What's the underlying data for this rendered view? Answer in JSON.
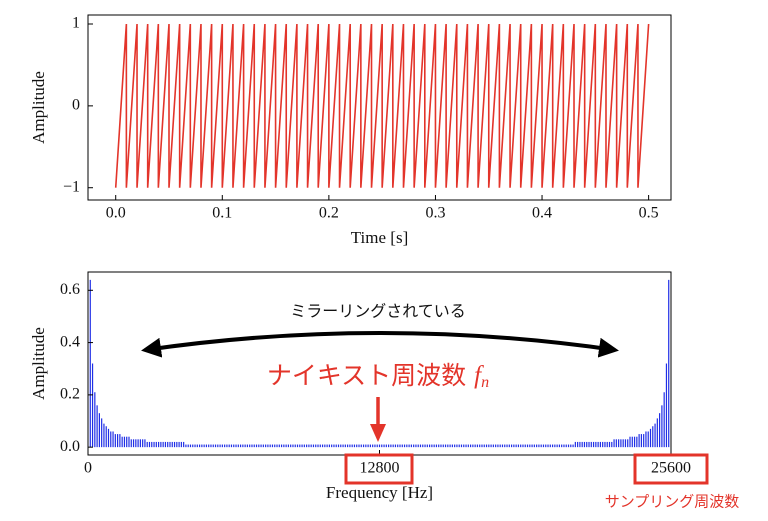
{
  "chart_data": [
    {
      "type": "line",
      "xlabel": "Time [s]",
      "ylabel": "Amplitude",
      "xlim": [
        -0.026,
        0.521
      ],
      "ylim": [
        -1.15,
        1.11
      ],
      "xticks": [
        {
          "value": 0,
          "label": "0.0"
        },
        0.1,
        0.2,
        0.3,
        0.4,
        0.5
      ],
      "yticks": [
        {
          "value": -1,
          "label": "−1"
        },
        0,
        1
      ],
      "color": "#e3342a",
      "x": [
        0,
        0.01,
        0.01,
        0.02,
        0.02,
        0.03,
        0.03,
        0.04,
        0.04,
        0.05,
        0.05,
        0.06,
        0.06,
        0.07,
        0.07,
        0.08,
        0.08,
        0.09,
        0.09,
        0.1,
        0.1,
        0.11,
        0.11,
        0.12,
        0.12,
        0.13,
        0.13,
        0.14,
        0.14,
        0.15,
        0.15,
        0.16,
        0.16,
        0.17,
        0.17,
        0.18,
        0.18,
        0.19,
        0.19,
        0.2,
        0.2,
        0.21,
        0.21,
        0.22,
        0.22,
        0.23,
        0.23,
        0.24,
        0.24,
        0.25,
        0.25,
        0.26,
        0.26,
        0.27,
        0.27,
        0.28,
        0.28,
        0.29,
        0.29,
        0.3,
        0.3,
        0.31,
        0.31,
        0.32,
        0.32,
        0.33,
        0.33,
        0.34,
        0.34,
        0.35,
        0.35,
        0.36,
        0.36,
        0.37,
        0.37,
        0.38,
        0.38,
        0.39,
        0.39,
        0.4,
        0.4,
        0.41,
        0.41,
        0.42,
        0.42,
        0.43,
        0.43,
        0.44,
        0.44,
        0.45,
        0.45,
        0.46,
        0.46,
        0.47,
        0.47,
        0.48,
        0.48,
        0.49,
        0.49,
        0.5
      ],
      "values": [
        -1,
        1,
        -1,
        1,
        -1,
        1,
        -1,
        1,
        -1,
        1,
        -1,
        1,
        -1,
        1,
        -1,
        1,
        -1,
        1,
        -1,
        1,
        -1,
        1,
        -1,
        1,
        -1,
        1,
        -1,
        1,
        -1,
        1,
        -1,
        1,
        -1,
        1,
        -1,
        1,
        -1,
        1,
        -1,
        1,
        -1,
        1,
        -1,
        1,
        -1,
        1,
        -1,
        1,
        -1,
        1,
        -1,
        1,
        -1,
        1,
        -1,
        1,
        -1,
        1,
        -1,
        1,
        -1,
        1,
        -1,
        1,
        -1,
        1,
        -1,
        1,
        -1,
        1,
        -1,
        1,
        -1,
        1,
        -1,
        1,
        -1,
        1,
        -1,
        1,
        -1,
        1,
        -1,
        1,
        -1,
        1,
        -1,
        1,
        -1,
        1,
        -1,
        1,
        -1,
        1,
        -1,
        1,
        -1,
        1,
        -1,
        1
      ]
    },
    {
      "type": "stem",
      "xlabel": "Frequency [Hz]",
      "ylabel": "Amplitude",
      "xlim": [
        0,
        25600
      ],
      "ylim": [
        -0.03,
        0.67
      ],
      "xticks": [
        0,
        12800,
        25600
      ],
      "yticks": [
        {
          "value": 0,
          "label": "0.0"
        },
        0.2,
        0.4,
        0.6
      ],
      "color": "#1f2ee6",
      "annotations": {
        "mirroring": "ミラーリングされている",
        "nyquist": "ナイキスト周波数",
        "nyquist_symbol": "f",
        "nyquist_subscript": "n",
        "sampling": "サンプリング周波数"
      },
      "x": [
        100,
        200,
        300,
        400,
        500,
        600,
        700,
        800,
        900,
        1000,
        1100,
        1200,
        1300,
        1400,
        1500,
        1600,
        1700,
        1800,
        1900,
        2000,
        2100,
        2200,
        2300,
        2400,
        2500,
        2600,
        2700,
        2800,
        2900,
        3000,
        3100,
        3200,
        3300,
        3400,
        3500,
        3600,
        3700,
        3800,
        3900,
        4000,
        4100,
        4200,
        4300,
        4400,
        4500,
        4600,
        4700,
        4800,
        4900,
        5000,
        5100,
        5200,
        5300,
        5400,
        5500,
        5600,
        5700,
        5800,
        5900,
        6000,
        6100,
        6200,
        6300,
        6400,
        6500,
        6600,
        6700,
        6800,
        6900,
        7000,
        7100,
        7200,
        7300,
        7400,
        7500,
        7600,
        7700,
        7800,
        7900,
        8000,
        8100,
        8200,
        8300,
        8400,
        8500,
        8600,
        8700,
        8800,
        8900,
        9000,
        9100,
        9200,
        9300,
        9400,
        9500,
        9600,
        9700,
        9800,
        9900,
        10000,
        10100,
        10200,
        10300,
        10400,
        10500,
        10600,
        10700,
        10800,
        10900,
        11000,
        11100,
        11200,
        11300,
        11400,
        11500,
        11600,
        11700,
        11800,
        11900,
        12000,
        12100,
        12200,
        12300,
        12400,
        12500,
        12600,
        12700,
        12800,
        12900,
        13000,
        13100,
        13200,
        13300,
        13400,
        13500,
        13600,
        13700,
        13800,
        13900,
        14000,
        14100,
        14200,
        14300,
        14400,
        14500,
        14600,
        14700,
        14800,
        14900,
        15000,
        15100,
        15200,
        15300,
        15400,
        15500,
        15600,
        15700,
        15800,
        15900,
        16000,
        16100,
        16200,
        16300,
        16400,
        16500,
        16600,
        16700,
        16800,
        16900,
        17000,
        17100,
        17200,
        17300,
        17400,
        17500,
        17600,
        17700,
        17800,
        17900,
        18000,
        18100,
        18200,
        18300,
        18400,
        18500,
        18600,
        18700,
        18800,
        18900,
        19000,
        19100,
        19200,
        19300,
        19400,
        19500,
        19600,
        19700,
        19800,
        19900,
        20000,
        20100,
        20200,
        20300,
        20400,
        20500,
        20600,
        20700,
        20800,
        20900,
        21000,
        21100,
        21200,
        21300,
        21400,
        21500,
        21600,
        21700,
        21800,
        21900,
        22000,
        22100,
        22200,
        22300,
        22400,
        22500,
        22600,
        22700,
        22800,
        22900,
        23000,
        23100,
        23200,
        23300,
        23400,
        23500,
        23600,
        23700,
        23800,
        23900,
        24000,
        24100,
        24200,
        24300,
        24400,
        24500,
        24600,
        24700,
        24800,
        24900,
        25000,
        25100,
        25200,
        25300,
        25400,
        25500
      ],
      "values": [
        0.64,
        0.32,
        0.21,
        0.16,
        0.13,
        0.11,
        0.09,
        0.08,
        0.07,
        0.06,
        0.06,
        0.05,
        0.05,
        0.05,
        0.04,
        0.04,
        0.04,
        0.04,
        0.03,
        0.03,
        0.03,
        0.03,
        0.03,
        0.03,
        0.03,
        0.02,
        0.02,
        0.02,
        0.02,
        0.02,
        0.02,
        0.02,
        0.02,
        0.02,
        0.02,
        0.02,
        0.02,
        0.02,
        0.02,
        0.02,
        0.02,
        0.02,
        0.01,
        0.01,
        0.01,
        0.01,
        0.01,
        0.01,
        0.01,
        0.01,
        0.01,
        0.01,
        0.01,
        0.01,
        0.01,
        0.01,
        0.01,
        0.01,
        0.01,
        0.01,
        0.01,
        0.01,
        0.01,
        0.01,
        0.01,
        0.01,
        0.01,
        0.01,
        0.01,
        0.01,
        0.01,
        0.01,
        0.01,
        0.01,
        0.01,
        0.01,
        0.01,
        0.01,
        0.01,
        0.01,
        0.01,
        0.01,
        0.01,
        0.01,
        0.01,
        0.01,
        0.01,
        0.01,
        0.01,
        0.01,
        0.01,
        0.01,
        0.01,
        0.01,
        0.01,
        0.01,
        0.01,
        0.01,
        0.01,
        0.01,
        0.01,
        0.01,
        0.01,
        0.01,
        0.01,
        0.01,
        0.01,
        0.01,
        0.01,
        0.01,
        0.01,
        0.01,
        0.01,
        0.01,
        0.01,
        0.01,
        0.01,
        0.01,
        0.01,
        0.01,
        0.01,
        0.01,
        0.01,
        0.01,
        0.01,
        0.01,
        0.01,
        0.01,
        0.01,
        0.01,
        0.01,
        0.01,
        0.01,
        0.01,
        0.01,
        0.01,
        0.01,
        0.01,
        0.01,
        0.01,
        0.01,
        0.01,
        0.01,
        0.01,
        0.01,
        0.01,
        0.01,
        0.01,
        0.01,
        0.01,
        0.01,
        0.01,
        0.01,
        0.01,
        0.01,
        0.01,
        0.01,
        0.01,
        0.01,
        0.01,
        0.01,
        0.01,
        0.01,
        0.01,
        0.01,
        0.01,
        0.01,
        0.01,
        0.01,
        0.01,
        0.01,
        0.01,
        0.01,
        0.01,
        0.01,
        0.01,
        0.01,
        0.01,
        0.01,
        0.01,
        0.01,
        0.01,
        0.01,
        0.01,
        0.01,
        0.01,
        0.01,
        0.01,
        0.01,
        0.01,
        0.01,
        0.01,
        0.01,
        0.01,
        0.01,
        0.01,
        0.01,
        0.01,
        0.01,
        0.01,
        0.01,
        0.01,
        0.01,
        0.01,
        0.01,
        0.01,
        0.01,
        0.01,
        0.01,
        0.01,
        0.01,
        0.01,
        0.01,
        0.02,
        0.02,
        0.02,
        0.02,
        0.02,
        0.02,
        0.02,
        0.02,
        0.02,
        0.02,
        0.02,
        0.02,
        0.02,
        0.02,
        0.02,
        0.02,
        0.02,
        0.03,
        0.03,
        0.03,
        0.03,
        0.03,
        0.03,
        0.03,
        0.04,
        0.04,
        0.04,
        0.04,
        0.05,
        0.05,
        0.05,
        0.06,
        0.06,
        0.07,
        0.08,
        0.09,
        0.11,
        0.13,
        0.16,
        0.21,
        0.32,
        0.64
      ]
    }
  ]
}
